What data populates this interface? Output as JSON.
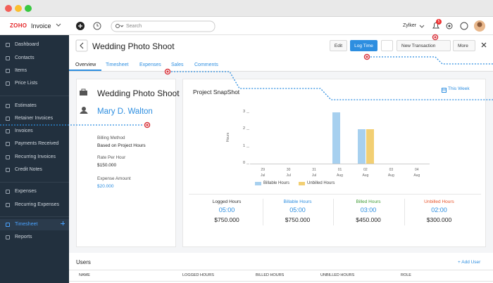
{
  "header": {
    "logo": "ZOHO",
    "app": "Invoice",
    "search_placeholder": "Search",
    "org": "Zylker",
    "notification_count": "5"
  },
  "sidebar": {
    "items": [
      "Dashboard",
      "Contacts",
      "Items",
      "Price Lists",
      "Estimates",
      "Retainer Invoices",
      "Invoices",
      "Payments Received",
      "Recurring Invoices",
      "Credit Notes",
      "Expenses",
      "Recurring Expenses",
      "Timesheet",
      "Reports"
    ]
  },
  "project": {
    "title": "Wedding Photo Shoot",
    "actions": {
      "edit": "Edit",
      "log_time": "Log Time",
      "new_transaction": "New Transaction",
      "more": "More"
    },
    "tabs": [
      "Overview",
      "Timesheet",
      "Expenses",
      "Sales",
      "Comments"
    ]
  },
  "details": {
    "name": "Wedding Photo Shoot",
    "customer": "Mary D. Walton",
    "fields": [
      {
        "label": "Billing Method",
        "value": "Based on Project Hours"
      },
      {
        "label": "Rate Per Hour",
        "value": "$150.000"
      },
      {
        "label": "Expense Amount",
        "value": "$20.000"
      }
    ]
  },
  "snapshot": {
    "title": "Project SnapShot",
    "period": "This Week",
    "chart_data": {
      "type": "bar",
      "y_label": "Hours",
      "categories": [
        "29\nJul",
        "30\nJul",
        "31\nJul",
        "01\nAug",
        "02\nAug",
        "03\nAug",
        "04\nAug"
      ],
      "series": [
        {
          "name": "Billable Hours",
          "color": "#a7d0ef",
          "values": [
            0,
            0,
            0,
            3,
            2,
            0,
            0
          ]
        },
        {
          "name": "Unbilled Hours",
          "color": "#f2cf73",
          "values": [
            0,
            0,
            0,
            0,
            2,
            0,
            0
          ]
        }
      ],
      "ylim": [
        0,
        3
      ],
      "yticks": [
        0,
        1,
        2,
        3
      ]
    },
    "stats": [
      {
        "label": "Logged Hours",
        "color": "#333333",
        "hours": "05:00",
        "amount": "$750.000"
      },
      {
        "label": "Billable Hours",
        "color": "#2d8ee0",
        "hours": "05:00",
        "amount": "$750.000"
      },
      {
        "label": "Billed Hours",
        "color": "#3f9c35",
        "hours": "03:00",
        "amount": "$450.000"
      },
      {
        "label": "Unbilled Hours",
        "color": "#e8542b",
        "hours": "02:00",
        "amount": "$300.000"
      }
    ]
  },
  "users": {
    "title": "Users",
    "add": "+ Add User",
    "columns": [
      "NAME",
      "LOGGED HOURS",
      "BILLED HOURS",
      "UNBILLED HOURS",
      "ROLE"
    ]
  }
}
